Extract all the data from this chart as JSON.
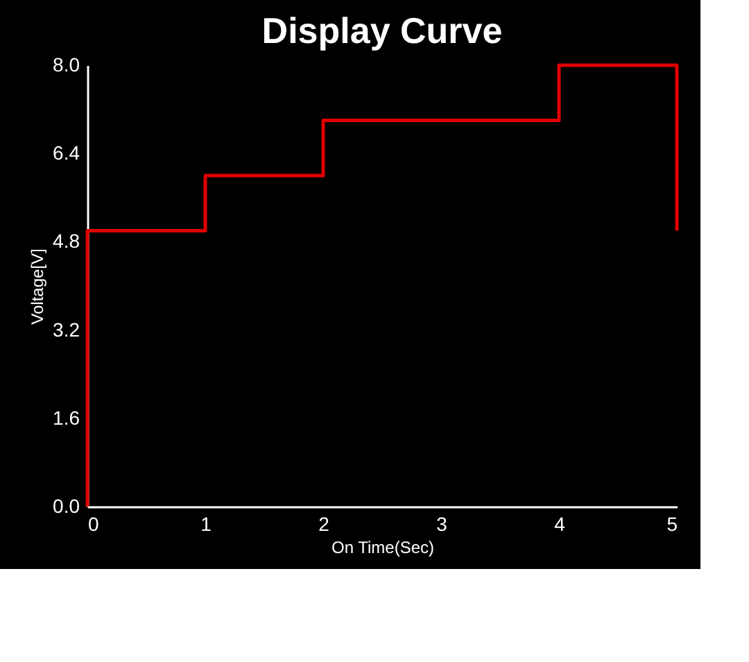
{
  "chart_data": {
    "type": "step",
    "title": "Display Curve",
    "xlabel": "On Time(Sec)",
    "ylabel": "Voltage[V]",
    "x": [
      0,
      0,
      1,
      2,
      4,
      5,
      5
    ],
    "series": [
      {
        "color": "#e00000",
        "values": [
          0,
          5,
          6,
          7,
          8,
          8,
          5
        ]
      }
    ],
    "xlim": [
      0,
      5
    ],
    "xticks": [
      0,
      1,
      2,
      3,
      4,
      5
    ],
    "ylim": [
      0,
      8
    ],
    "yticks": [
      {
        "value": 0,
        "label": "0.0"
      },
      {
        "value": 1.6,
        "label": "1.6"
      },
      {
        "value": 3.2,
        "label": "3.2"
      },
      {
        "value": 4.8,
        "label": "4.8"
      },
      {
        "value": 6.4,
        "label": "6.4"
      },
      {
        "value": 8,
        "label": "8.0"
      }
    ],
    "grid": false,
    "marker": "none",
    "line_style": "solid"
  }
}
